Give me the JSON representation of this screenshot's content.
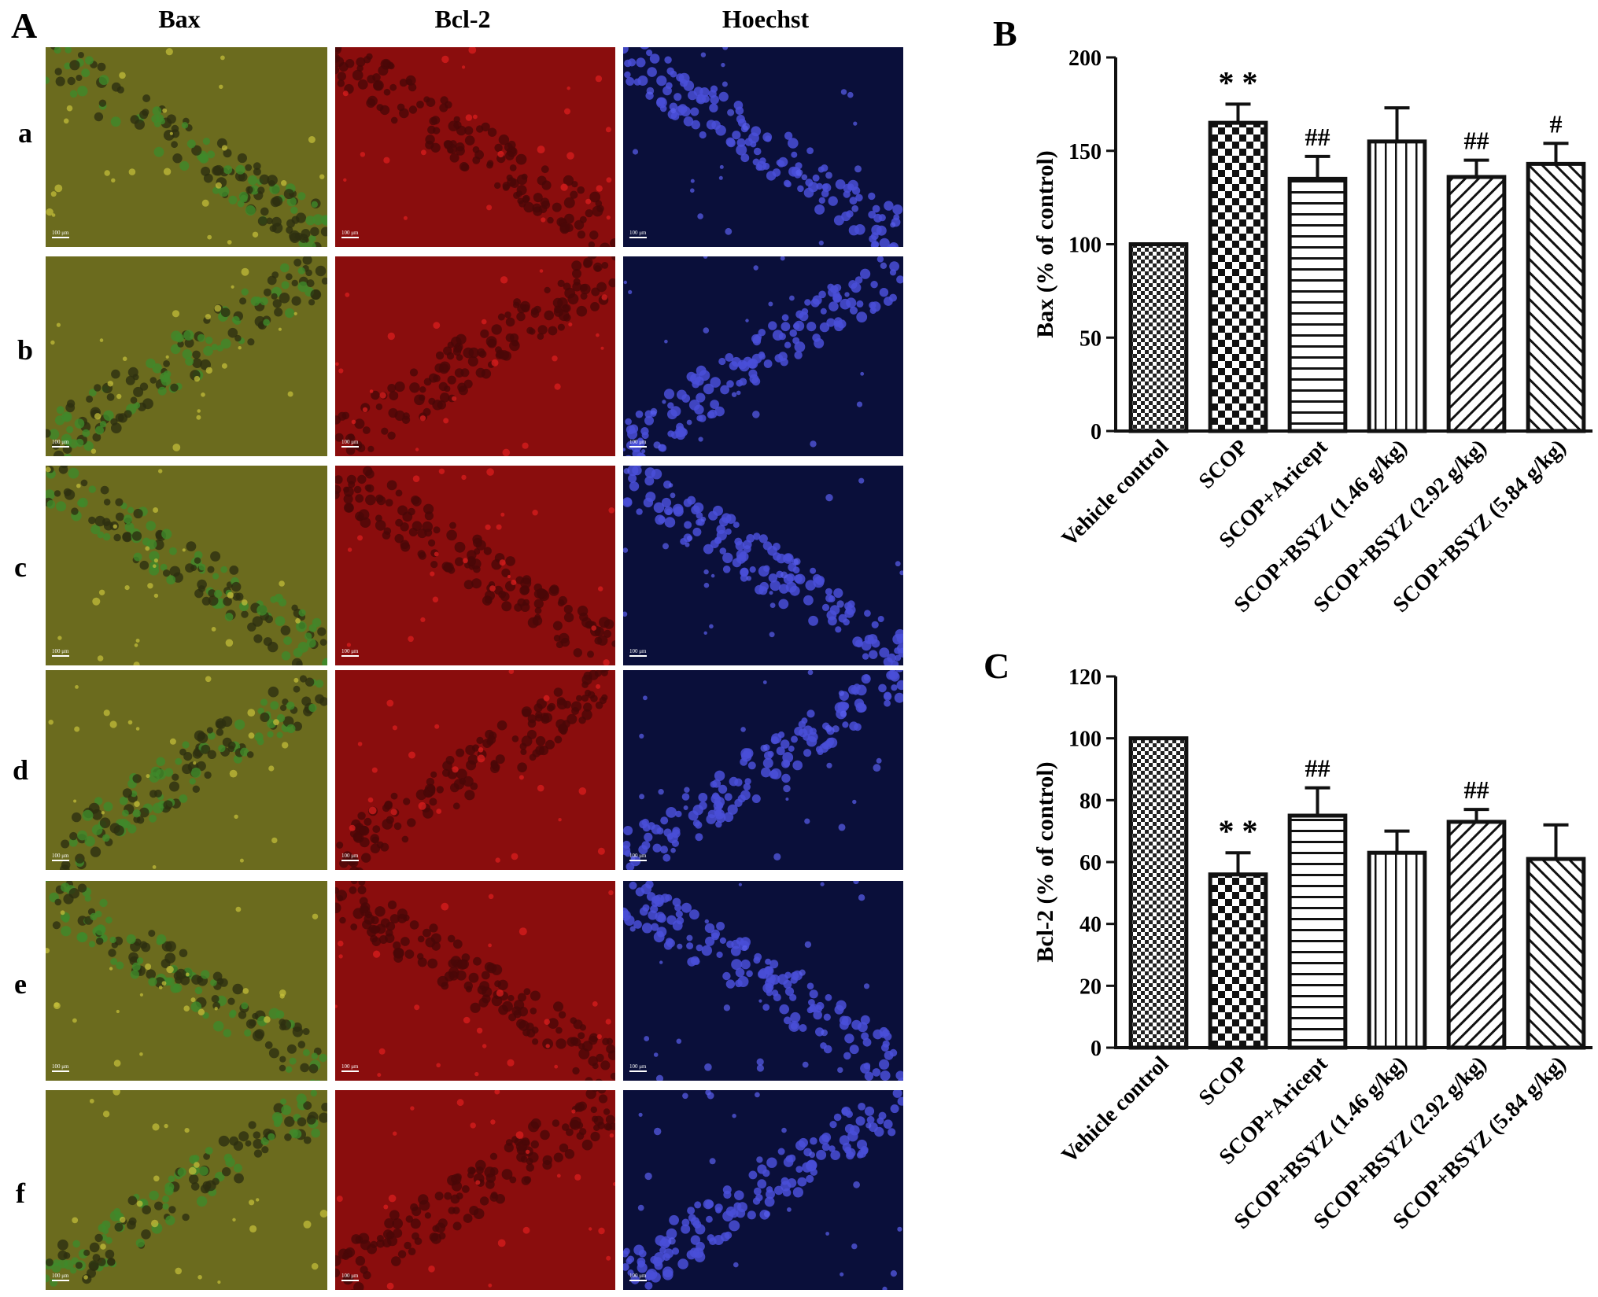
{
  "panel_a": {
    "letter": "A",
    "columns": [
      "Bax",
      "Bcl-2",
      "Hoechst"
    ],
    "rows": [
      "a",
      "b",
      "c",
      "d",
      "e",
      "f"
    ],
    "scale_bar": "100 μm",
    "colors": {
      "bax": "#6b6b1e",
      "bcl2": "#8a0d0d",
      "hoechst": "#0a0f3a"
    }
  },
  "chart_data": [
    {
      "panel": "B",
      "type": "bar",
      "categories": [
        "Vehicle control",
        "SCOP",
        "SCOP+Aricept",
        "SCOP+BSYZ (1.46 g/kg)",
        "SCOP+BSYZ (2.92 g/kg)",
        "SCOP+BSYZ (5.84 g/kg)"
      ],
      "values": [
        100,
        165,
        135,
        155,
        136,
        143
      ],
      "errors": [
        0,
        10,
        12,
        18,
        9,
        11
      ],
      "annotations": [
        "",
        "**",
        "##",
        "",
        "##",
        "#"
      ],
      "patterns": [
        "small-check",
        "large-check",
        "horizontal",
        "vertical",
        "diagonal-right",
        "diagonal-left"
      ],
      "ylabel": "Bax (% of control)",
      "ylim": [
        0,
        200
      ],
      "yticks": [
        0,
        50,
        100,
        150,
        200
      ]
    },
    {
      "panel": "C",
      "type": "bar",
      "categories": [
        "Vehicle control",
        "SCOP",
        "SCOP+Aricept",
        "SCOP+BSYZ (1.46 g/kg)",
        "SCOP+BSYZ (2.92 g/kg)",
        "SCOP+BSYZ (5.84 g/kg)"
      ],
      "values": [
        100,
        56,
        75,
        63,
        73,
        61
      ],
      "errors": [
        0,
        7,
        9,
        7,
        4,
        11
      ],
      "annotations": [
        "",
        "**",
        "##",
        "",
        "##",
        ""
      ],
      "patterns": [
        "small-check",
        "large-check",
        "horizontal",
        "vertical",
        "diagonal-right",
        "diagonal-left"
      ],
      "ylabel": "Bcl-2 (% of control)",
      "ylim": [
        0,
        120
      ],
      "yticks": [
        0,
        20,
        40,
        60,
        80,
        100,
        120
      ]
    }
  ]
}
